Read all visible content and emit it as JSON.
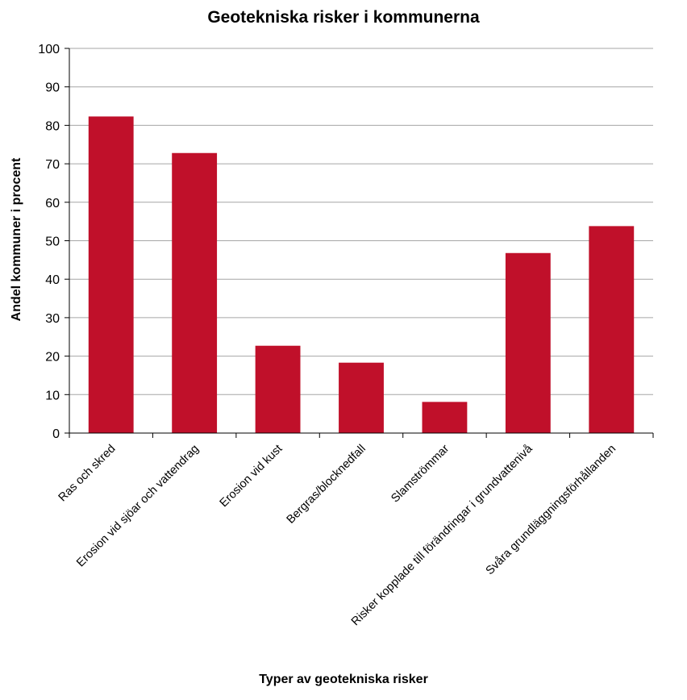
{
  "chart_data": {
    "type": "bar",
    "title": "Geotekniska risker i kommunerna",
    "xlabel": "Typer av geotekniska risker",
    "ylabel": "Andel kommuner i procent",
    "categories": [
      "Ras och skred",
      "Erosion vid sjöar och vattendrag",
      "Erosion vid kust",
      "Bergras/blocknedfall",
      "Slamströmmar",
      "Risker kopplade till förändringar i grundvattenivå",
      "Svåra grundläggningsförhållanden"
    ],
    "values": [
      82.3,
      72.8,
      22.7,
      18.3,
      8.1,
      46.8,
      53.8
    ],
    "ylim": [
      0,
      100
    ],
    "yticks": [
      0,
      10,
      20,
      30,
      40,
      50,
      60,
      70,
      80,
      90,
      100
    ],
    "grid": true,
    "legend": "none",
    "bar_color": "#c0102a"
  }
}
